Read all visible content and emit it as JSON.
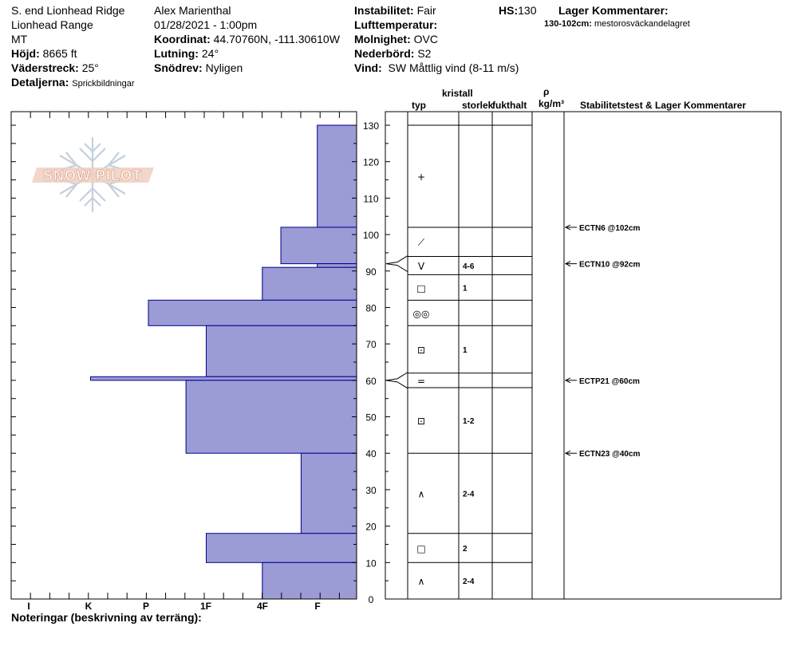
{
  "header": {
    "location": "S. end Lionhead Ridge",
    "range": "Lionhead Range",
    "state": "MT",
    "elevation_label": "Höjd:",
    "elevation_value": "8665 ft",
    "aspect_label": "Väderstreck:",
    "aspect_value": "25°",
    "details_label": "Detaljerna:",
    "details_value": "Sprickbildningar",
    "observer": "Alex Marienthal",
    "datetime": "01/28/2021 - 1:00pm",
    "coord_label": "Koordinat:",
    "coord_value": "44.70760N, -111.30610W",
    "slope_label": "Lutning:",
    "slope_value": "24°",
    "drift_label": "Snödrev:",
    "drift_value": "Nyligen",
    "instability_label": "Instabilitet:",
    "instability_value": "Fair",
    "airtemp_label": "Lufttemperatur:",
    "sky_label": "Molnighet:",
    "sky_value": "OVC",
    "precip_label": "Nederbörd:",
    "precip_value": "S2",
    "wind_label": "Vind:",
    "wind_value": "SW  Måttlig vind (8-11 m/s)",
    "hs_label": "HS:",
    "hs_value": "130",
    "layer_comments_label": "Lager Kommentarer:",
    "layer_comment_range": "130-102cm:",
    "layer_comment_text": "mestorosväckandelagret"
  },
  "columns": {
    "crystal": "kristall",
    "type": "typ",
    "size": "storlek",
    "moisture": "fukthalt",
    "rho": "ρ",
    "density_unit": "kg/m³",
    "stability": "Stabilitetstest & Lager Kommentarer"
  },
  "logo_text": "SNOW PILOT",
  "notes_label": "Noteringar (beskrivning av terräng):",
  "hardness_labels": [
    "I",
    "K",
    "P",
    "1F",
    "4F",
    "F"
  ],
  "depth_ticks": [
    0,
    10,
    20,
    30,
    40,
    50,
    60,
    70,
    80,
    90,
    100,
    110,
    120,
    130
  ],
  "colors": {
    "layer_fill": "#9b9bd6",
    "layer_stroke": "#00008b"
  },
  "chart_data": {
    "type": "bar",
    "title": "",
    "xlabel": "",
    "ylabel": "",
    "ylim": [
      0,
      130
    ],
    "hardness_scale": [
      "F",
      "4F",
      "1F",
      "P",
      "K",
      "I"
    ],
    "layers": [
      {
        "top": 130,
        "bottom": 102,
        "hardness": 0.68
      },
      {
        "top": 102,
        "bottom": 92,
        "hardness": 1.31
      },
      {
        "top": 92,
        "bottom": 91,
        "hardness": 0.68
      },
      {
        "top": 91,
        "bottom": 82,
        "hardness": 1.63
      },
      {
        "top": 82,
        "bottom": 75,
        "hardness": 3.6
      },
      {
        "top": 75,
        "bottom": 61,
        "hardness": 2.6
      },
      {
        "top": 61,
        "bottom": 60,
        "hardness": 4.6
      },
      {
        "top": 60,
        "bottom": 40,
        "hardness": 2.95
      },
      {
        "top": 40,
        "bottom": 18,
        "hardness": 0.96
      },
      {
        "top": 18,
        "bottom": 10,
        "hardness": 2.6
      },
      {
        "top": 10,
        "bottom": 0,
        "hardness": 1.63
      }
    ]
  },
  "layer_table": {
    "boundaries": [
      130,
      102,
      94,
      89,
      82,
      75,
      62,
      58,
      40,
      18,
      10,
      0
    ],
    "rows": [
      {
        "type_icon": "precipitation-particle-icon",
        "glyph": "+",
        "size": ""
      },
      {
        "type_icon": "decomposing-fragment-icon",
        "glyph": "⟋",
        "size": ""
      },
      {
        "type_icon": "surface-hoar-icon",
        "glyph": "V",
        "size": "4-6"
      },
      {
        "type_icon": "faceted-crystal-icon",
        "glyph": "□",
        "size": "1"
      },
      {
        "type_icon": "melt-form-icon",
        "glyph": "◎◎",
        "size": ""
      },
      {
        "type_icon": "mixed-form-icon",
        "glyph": "⊡",
        "size": "1"
      },
      {
        "type_icon": "crust-icon",
        "glyph": "=",
        "size": ""
      },
      {
        "type_icon": "mixed-form-icon",
        "glyph": "⊡",
        "size": "1-2"
      },
      {
        "type_icon": "depth-hoar-icon",
        "glyph": "∧",
        "size": "2-4"
      },
      {
        "type_icon": "faceted-crystal-icon",
        "glyph": "□",
        "size": "2"
      },
      {
        "type_icon": "depth-hoar-icon",
        "glyph": "∧",
        "size": "2-4"
      }
    ]
  },
  "stability_tests": [
    {
      "depth": 102,
      "label": "ECTN6 @102cm"
    },
    {
      "depth": 92,
      "label": "ECTN10 @92cm"
    },
    {
      "depth": 60,
      "label": "ECTP21 @60cm"
    },
    {
      "depth": 40,
      "label": "ECTN23 @40cm"
    }
  ],
  "interface_marks": [
    92,
    60
  ]
}
